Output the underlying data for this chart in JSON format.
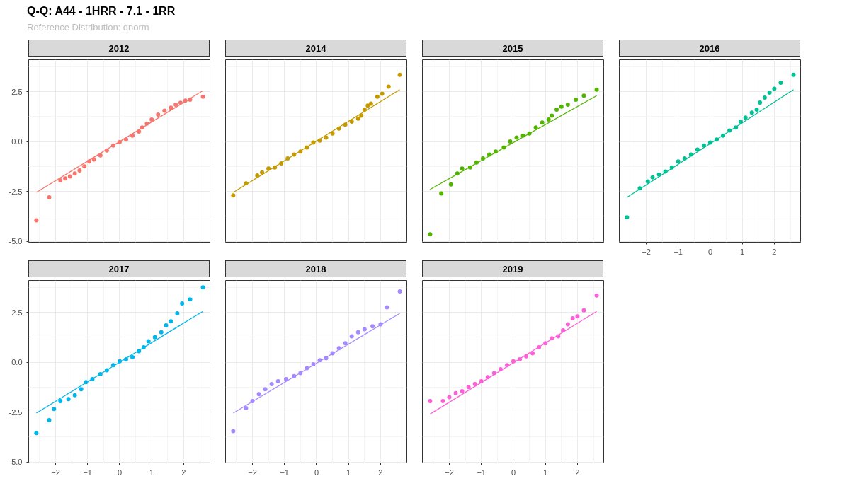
{
  "chart_data": [
    {
      "type": "scatter",
      "title": "2012",
      "annotations": [
        "Q-Q: A44 - 1HRR - 7.1 - 1RR"
      ],
      "subtitle": "Reference Distribution: qnorm",
      "xlim": [
        -2.84,
        2.82
      ],
      "ylim": [
        -5.05,
        4.1
      ],
      "xticks": [
        -2,
        -1,
        0,
        1,
        2
      ],
      "yticks": [
        {
          "value": -5,
          "label": "-5.0"
        },
        {
          "value": -2.5,
          "label": "-2.5"
        },
        {
          "value": 0,
          "label": "0.0"
        },
        {
          "value": 2.5,
          "label": "2.5"
        }
      ],
      "grid": true,
      "marker": "circle",
      "tick_labels": "y",
      "series": [
        {
          "color": "#f8766d",
          "x": [
            -2.6,
            -2.2,
            -1.85,
            -1.7,
            -1.55,
            -1.4,
            -1.25,
            -1.1,
            -0.95,
            -0.8,
            -0.6,
            -0.4,
            -0.2,
            0,
            0.2,
            0.4,
            0.6,
            0.7,
            0.85,
            1.0,
            1.2,
            1.4,
            1.6,
            1.75,
            1.9,
            2.05,
            2.2,
            2.6
          ],
          "values": [
            -3.95,
            -2.8,
            -1.95,
            -1.85,
            -1.75,
            -1.6,
            -1.45,
            -1.25,
            -1.0,
            -0.9,
            -0.7,
            -0.45,
            -0.2,
            -0.02,
            0.1,
            0.3,
            0.5,
            0.7,
            0.9,
            1.1,
            1.35,
            1.55,
            1.7,
            1.85,
            1.95,
            2.05,
            2.1,
            2.25
          ]
        },
        {
          "type": "line",
          "marker": "none",
          "color": "#f8766d",
          "x": [
            -2.6,
            2.6
          ],
          "values": [
            -2.55,
            2.55
          ]
        }
      ]
    },
    {
      "type": "scatter",
      "title": "2014",
      "xlim": [
        -2.84,
        2.82
      ],
      "ylim": [
        -5.05,
        4.1
      ],
      "xticks": [
        -2,
        -1,
        0,
        1,
        2
      ],
      "yticks": [
        -5,
        -2.5,
        0,
        2.5
      ],
      "grid": true,
      "marker": "circle",
      "tick_labels": false,
      "series": [
        {
          "color": "#c49a00",
          "x": [
            -2.6,
            -2.2,
            -1.85,
            -1.7,
            -1.5,
            -1.3,
            -1.1,
            -0.9,
            -0.7,
            -0.5,
            -0.3,
            -0.1,
            0.1,
            0.3,
            0.5,
            0.7,
            0.9,
            1.1,
            1.3,
            1.4,
            1.5,
            1.6,
            1.7,
            1.9,
            2.05,
            2.25,
            2.6
          ],
          "values": [
            -2.7,
            -2.1,
            -1.7,
            -1.55,
            -1.35,
            -1.3,
            -1.1,
            -0.85,
            -0.65,
            -0.5,
            -0.3,
            -0.05,
            0.05,
            0.2,
            0.4,
            0.65,
            0.85,
            1.0,
            1.15,
            1.3,
            1.6,
            1.8,
            1.9,
            2.25,
            2.4,
            2.75,
            3.35
          ]
        },
        {
          "type": "line",
          "marker": "none",
          "color": "#c49a00",
          "x": [
            -2.6,
            2.6
          ],
          "values": [
            -2.55,
            2.6
          ]
        }
      ]
    },
    {
      "type": "scatter",
      "title": "2015",
      "xlim": [
        -2.84,
        2.82
      ],
      "ylim": [
        -5.05,
        4.1
      ],
      "xticks": [
        -2,
        -1,
        0,
        1,
        2
      ],
      "yticks": [
        -5,
        -2.5,
        0,
        2.5
      ],
      "grid": true,
      "marker": "circle",
      "tick_labels": false,
      "series": [
        {
          "color": "#53b400",
          "x": [
            -2.6,
            -2.25,
            -1.95,
            -1.75,
            -1.6,
            -1.35,
            -1.15,
            -0.95,
            -0.75,
            -0.55,
            -0.3,
            -0.1,
            0.1,
            0.3,
            0.5,
            0.7,
            0.9,
            1.1,
            1.2,
            1.35,
            1.5,
            1.7,
            1.95,
            2.2,
            2.6
          ],
          "values": [
            -4.65,
            -2.6,
            -2.15,
            -1.6,
            -1.35,
            -1.3,
            -1.05,
            -0.85,
            -0.65,
            -0.5,
            -0.3,
            0.0,
            0.2,
            0.3,
            0.4,
            0.7,
            0.95,
            1.1,
            1.3,
            1.6,
            1.75,
            1.85,
            2.1,
            2.3,
            2.6
          ]
        },
        {
          "type": "line",
          "marker": "none",
          "color": "#53b400",
          "x": [
            -2.6,
            2.6
          ],
          "values": [
            -2.4,
            2.3
          ]
        }
      ]
    },
    {
      "type": "scatter",
      "title": "2016",
      "xlim": [
        -2.84,
        2.82
      ],
      "ylim": [
        -5.05,
        4.1
      ],
      "xticks": [
        -2,
        -1,
        0,
        1,
        2
      ],
      "yticks": [
        -5,
        -2.5,
        0,
        2.5
      ],
      "grid": true,
      "marker": "circle",
      "tick_labels": "x",
      "series": [
        {
          "color": "#00c094",
          "x": [
            -2.6,
            -2.2,
            -1.95,
            -1.8,
            -1.6,
            -1.4,
            -1.2,
            -1.0,
            -0.8,
            -0.6,
            -0.4,
            -0.2,
            0,
            0.2,
            0.4,
            0.6,
            0.8,
            0.95,
            1.1,
            1.3,
            1.45,
            1.55,
            1.7,
            1.85,
            2.0,
            2.2,
            2.6
          ],
          "values": [
            -3.8,
            -2.35,
            -2.0,
            -1.8,
            -1.65,
            -1.5,
            -1.3,
            -1.0,
            -0.85,
            -0.65,
            -0.4,
            -0.2,
            -0.05,
            0.1,
            0.3,
            0.55,
            0.7,
            1.0,
            1.2,
            1.45,
            1.6,
            1.95,
            2.2,
            2.45,
            2.65,
            2.95,
            3.35
          ]
        },
        {
          "type": "line",
          "marker": "none",
          "color": "#00c094",
          "x": [
            -2.6,
            2.6
          ],
          "values": [
            -2.8,
            2.6
          ]
        }
      ]
    },
    {
      "type": "scatter",
      "title": "2017",
      "xlim": [
        -2.84,
        2.82
      ],
      "ylim": [
        -5.05,
        4.1
      ],
      "xticks": [
        -2,
        -1,
        0,
        1,
        2
      ],
      "yticks": [
        {
          "value": -5,
          "label": "-5.0"
        },
        {
          "value": -2.5,
          "label": "-2.5"
        },
        {
          "value": 0,
          "label": "0.0"
        },
        {
          "value": 2.5,
          "label": "2.5"
        }
      ],
      "grid": true,
      "marker": "circle",
      "series": [
        {
          "color": "#00b6eb",
          "x": [
            -2.6,
            -2.2,
            -2.05,
            -1.85,
            -1.6,
            -1.4,
            -1.2,
            -1.05,
            -0.85,
            -0.6,
            -0.4,
            -0.2,
            0,
            0.2,
            0.4,
            0.6,
            0.75,
            0.9,
            1.1,
            1.3,
            1.45,
            1.6,
            1.8,
            1.95,
            2.2,
            2.6
          ],
          "values": [
            -3.55,
            -2.9,
            -2.35,
            -1.95,
            -1.85,
            -1.65,
            -1.35,
            -1.0,
            -0.85,
            -0.6,
            -0.4,
            -0.15,
            0.05,
            0.15,
            0.25,
            0.55,
            0.75,
            1.05,
            1.25,
            1.5,
            1.85,
            2.05,
            2.45,
            2.95,
            3.15,
            3.75
          ]
        },
        {
          "type": "line",
          "marker": "none",
          "color": "#00b6eb",
          "x": [
            -2.6,
            2.6
          ],
          "values": [
            -2.55,
            2.55
          ]
        }
      ]
    },
    {
      "type": "scatter",
      "title": "2018",
      "xlim": [
        -2.84,
        2.82
      ],
      "ylim": [
        -5.05,
        4.1
      ],
      "xticks": [
        -2,
        -1,
        0,
        1,
        2
      ],
      "yticks": [
        -5,
        -2.5,
        0,
        2.5
      ],
      "grid": true,
      "marker": "circle",
      "tick_labels": "x",
      "series": [
        {
          "color": "#a58aff",
          "x": [
            -2.6,
            -2.2,
            -2.0,
            -1.8,
            -1.6,
            -1.4,
            -1.2,
            -0.95,
            -0.7,
            -0.5,
            -0.3,
            -0.1,
            0.1,
            0.3,
            0.5,
            0.7,
            0.9,
            1.1,
            1.3,
            1.5,
            1.75,
            2.0,
            2.2,
            2.6
          ],
          "values": [
            -3.45,
            -2.3,
            -1.95,
            -1.6,
            -1.35,
            -1.1,
            -0.95,
            -0.85,
            -0.7,
            -0.55,
            -0.3,
            -0.1,
            0.1,
            0.2,
            0.45,
            0.7,
            0.95,
            1.3,
            1.5,
            1.65,
            1.8,
            1.9,
            2.75,
            3.55
          ]
        },
        {
          "type": "line",
          "marker": "none",
          "color": "#a58aff",
          "x": [
            -2.6,
            2.6
          ],
          "values": [
            -2.55,
            2.45
          ]
        }
      ]
    },
    {
      "type": "scatter",
      "title": "2019",
      "xlim": [
        -2.84,
        2.82
      ],
      "ylim": [
        -5.05,
        4.1
      ],
      "xticks": [
        -2,
        -1,
        0,
        1,
        2
      ],
      "yticks": [
        -5,
        -2.5,
        0,
        2.5
      ],
      "grid": true,
      "marker": "circle",
      "tick_labels": "x",
      "series": [
        {
          "color": "#fb61d7",
          "x": [
            -2.6,
            -2.2,
            -2.0,
            -1.8,
            -1.6,
            -1.4,
            -1.2,
            -1.0,
            -0.8,
            -0.6,
            -0.4,
            -0.2,
            0,
            0.2,
            0.4,
            0.6,
            0.8,
            1.0,
            1.2,
            1.4,
            1.55,
            1.7,
            1.85,
            2.0,
            2.2,
            2.6
          ],
          "values": [
            -1.95,
            -1.95,
            -1.75,
            -1.55,
            -1.45,
            -1.25,
            -1.1,
            -0.95,
            -0.75,
            -0.55,
            -0.35,
            -0.15,
            0.05,
            0.15,
            0.3,
            0.45,
            0.75,
            0.95,
            1.2,
            1.3,
            1.6,
            1.9,
            2.2,
            2.3,
            2.6,
            3.35
          ]
        },
        {
          "type": "line",
          "marker": "none",
          "color": "#fb61d7",
          "x": [
            -2.6,
            2.6
          ],
          "values": [
            -2.6,
            2.55
          ]
        }
      ]
    }
  ]
}
